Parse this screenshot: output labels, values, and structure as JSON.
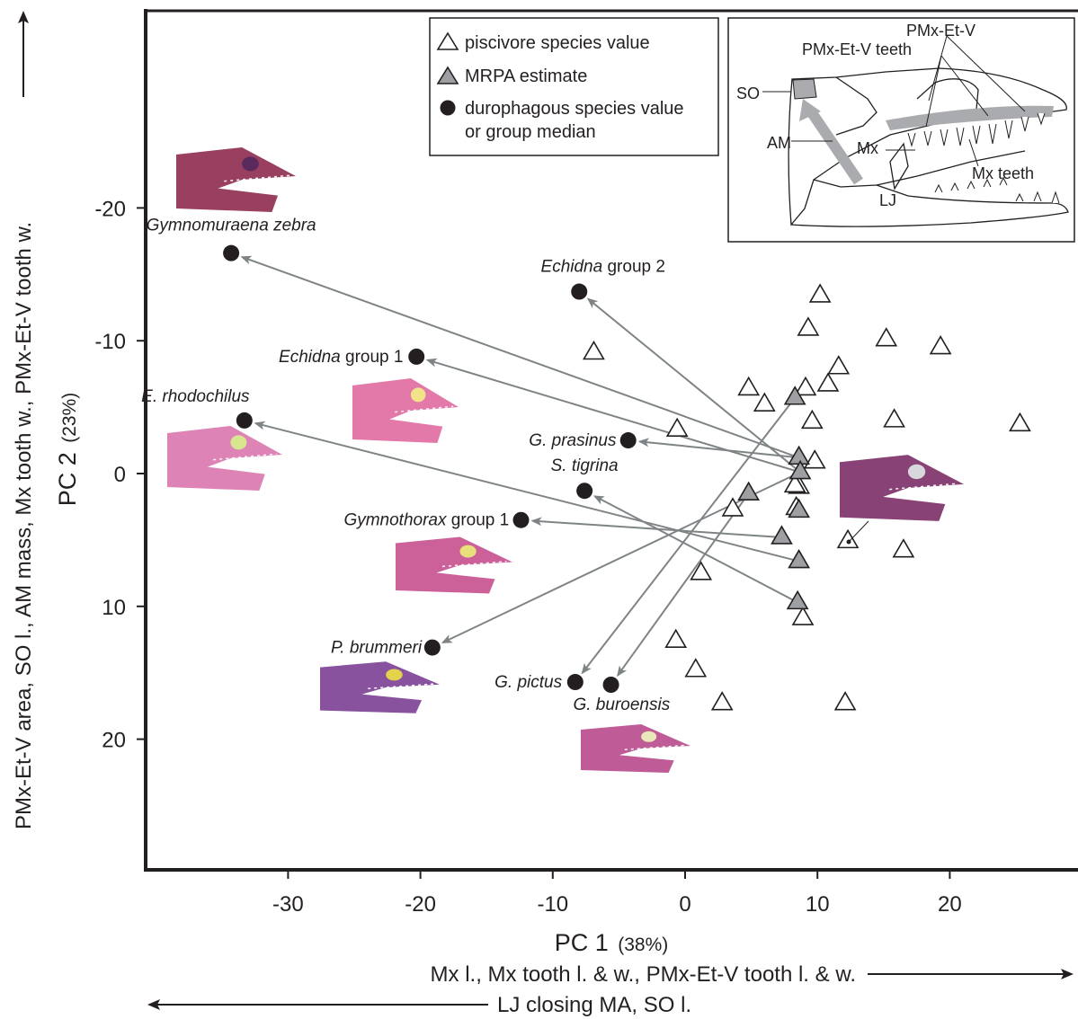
{
  "chart_data": {
    "type": "scatter",
    "x_axis": {
      "label": "PC 1",
      "variance": "(38%)",
      "ticks": [
        -30,
        -20,
        -10,
        0,
        10,
        20
      ],
      "tick_labels": [
        "-30",
        "-20",
        "-10",
        "0",
        "10",
        "20"
      ],
      "range": [
        -41,
        29
      ]
    },
    "y_axis": {
      "label": "PC 2",
      "variance": "(23%)",
      "ticks": [
        -20,
        -10,
        0,
        10,
        20
      ],
      "tick_labels": [
        "-20",
        "-10",
        "0",
        "10",
        "20"
      ],
      "range": [
        -35.5,
        30
      ],
      "inverted": true
    },
    "directions": {
      "x_positive": "Mx l., Mx tooth l. & w., PMx-Et-V tooth l. & w.",
      "x_negative": "LJ closing MA, SO l.",
      "y_positive": "PMx-Et-V area, SO l., AM mass, Mx tooth w., PMx-Et-V tooth w."
    },
    "legend": {
      "placement": "top-center",
      "entries": [
        {
          "symbol": "open-triangle",
          "label": "piscivore species value"
        },
        {
          "symbol": "gray-triangle",
          "label": "MRPA estimate"
        },
        {
          "symbol": "black-circle",
          "label_line1": "durophagous species value",
          "label_line2": "or group median"
        }
      ]
    },
    "colors": {
      "open": "#ffffff",
      "mrpa": "#9d9fa2",
      "duro": "#231f20",
      "arrow": "#7e8486",
      "diagram_fill": "#a9abae"
    },
    "piscivore_points": [
      {
        "x": -6.9,
        "y": -9.1
      },
      {
        "x": -0.6,
        "y": -3.3
      },
      {
        "x": 1.2,
        "y": 7.5
      },
      {
        "x": -0.7,
        "y": 12.6
      },
      {
        "x": 0.8,
        "y": 14.8
      },
      {
        "x": 2.8,
        "y": 17.3
      },
      {
        "x": 3.6,
        "y": 2.7
      },
      {
        "x": 4.8,
        "y": -6.4
      },
      {
        "x": 6.0,
        "y": -5.2
      },
      {
        "x": 8.6,
        "y": 1.0
      },
      {
        "x": 8.9,
        "y": 10.9
      },
      {
        "x": 9.1,
        "y": -6.4
      },
      {
        "x": 9.3,
        "y": -10.9
      },
      {
        "x": 9.6,
        "y": -3.9
      },
      {
        "x": 9.8,
        "y": -0.9
      },
      {
        "x": 10.2,
        "y": -13.4
      },
      {
        "x": 10.8,
        "y": -6.7
      },
      {
        "x": 11.6,
        "y": -8.0
      },
      {
        "x": 12.3,
        "y": 5.1
      },
      {
        "x": 12.1,
        "y": 17.3
      },
      {
        "x": 15.2,
        "y": -10.1
      },
      {
        "x": 15.8,
        "y": -4.0
      },
      {
        "x": 16.5,
        "y": 5.8
      },
      {
        "x": 19.3,
        "y": -9.5
      },
      {
        "x": 25.3,
        "y": -3.7
      },
      {
        "x": 8.3,
        "y": 0.9
      },
      {
        "x": 8.4,
        "y": 2.6
      }
    ],
    "mrpa_points": [
      {
        "id": "m1",
        "x": 8.3,
        "y": -5.7
      },
      {
        "id": "m2",
        "x": 8.6,
        "y": -1.2
      },
      {
        "id": "m3",
        "x": 8.7,
        "y": -0.1
      },
      {
        "id": "m4",
        "x": 4.8,
        "y": 1.5
      },
      {
        "id": "m5",
        "x": 8.6,
        "y": 2.8
      },
      {
        "id": "m6",
        "x": 7.3,
        "y": 4.8
      },
      {
        "id": "m7",
        "x": 8.6,
        "y": 6.6
      },
      {
        "id": "m8",
        "x": 8.5,
        "y": 9.7
      }
    ],
    "durophagous_points": [
      {
        "name": "Gymnomuraena zebra",
        "italic": "Gymnomuraena zebra",
        "plain": "",
        "x": -34.3,
        "y": -16.6,
        "from": "m2"
      },
      {
        "name": "Echidna group 2",
        "italic": "Echidna",
        "plain": " group 2",
        "x": -8.0,
        "y": -13.7,
        "from": "m3"
      },
      {
        "name": "Echidna group 1",
        "italic": "Echidna",
        "plain": " group 1",
        "x": -20.3,
        "y": -8.8,
        "from": "m3"
      },
      {
        "name": "E. rhodochilus",
        "italic": "E. rhodochilus",
        "plain": "",
        "x": -33.3,
        "y": -4.0,
        "from": "m7"
      },
      {
        "name": "G. prasinus",
        "italic": "G. prasinus",
        "plain": "",
        "x": -4.3,
        "y": -2.5,
        "from": "m2"
      },
      {
        "name": "S. tigrina",
        "italic": "S. tigrina",
        "plain": "",
        "x": -7.6,
        "y": 1.3,
        "from": "m8"
      },
      {
        "name": "Gymnothorax group 1",
        "italic": "Gymnothorax",
        "plain": " group 1",
        "x": -12.4,
        "y": 3.5,
        "from": "m6"
      },
      {
        "name": "P. brummeri",
        "italic": "P. brummeri",
        "plain": "",
        "x": -19.1,
        "y": 13.1,
        "from": "m3"
      },
      {
        "name": "G. pictus",
        "italic": "G. pictus",
        "plain": "",
        "x": -8.3,
        "y": 15.7,
        "from": "m1"
      },
      {
        "name": "G. buroensis",
        "italic": "G. buroensis",
        "plain": "",
        "x": -5.6,
        "y": 15.9,
        "from": "m4"
      }
    ]
  },
  "diagram": {
    "labels": {
      "so": "SO",
      "am": "AM",
      "mx": "Mx",
      "lj": "LJ",
      "pmx": "PMx-Et-V",
      "pmx_teeth": "PMx-Et-V teeth",
      "mx_teeth": "Mx teeth"
    }
  }
}
